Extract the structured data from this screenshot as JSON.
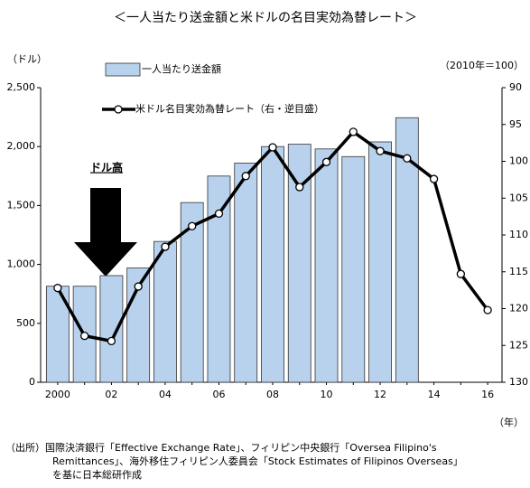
{
  "chart_data": {
    "type": "bar_line",
    "title": "＜一人当たり送金額と米ドルの名目実効為替レート＞",
    "y_label": "（ドル）",
    "y2_label": "（2010年＝100）",
    "x_label": "（年）",
    "annotation": "ドル高",
    "categories": [
      "2000",
      null,
      "02",
      null,
      "04",
      null,
      "06",
      null,
      "08",
      null,
      "10",
      null,
      "12",
      null,
      "14",
      null,
      "16"
    ],
    "series": [
      {
        "name": "一人当たり送金額",
        "color": "#b8d2ee",
        "type": "bar",
        "values": [
          815,
          815,
          905,
          970,
          1195,
          1525,
          1750,
          1860,
          2000,
          2020,
          1980,
          1915,
          2040,
          2245,
          null,
          null,
          null
        ]
      },
      {
        "name": "米ドル名目実効為替レート（右・逆目盛）",
        "color": "#000000",
        "type": "line",
        "axis": "y2",
        "values": [
          117.2,
          123.7,
          124.4,
          117.0,
          111.6,
          108.8,
          107.1,
          102.0,
          98.1,
          103.5,
          100.1,
          96.0,
          98.6,
          99.6,
          102.4,
          115.3,
          120.2
        ]
      }
    ],
    "ylim": [
      0,
      2500
    ],
    "yticks": [
      0,
      500,
      {
        "value": 1000,
        "label": "1,000"
      },
      {
        "value": 1500,
        "label": "1,500"
      },
      {
        "value": 2000,
        "label": "2,000"
      },
      {
        "value": 2500,
        "label": "2,500"
      }
    ],
    "y2lim": [
      90,
      130
    ],
    "y2ticks": [
      90,
      95,
      100,
      105,
      110,
      115,
      120,
      125,
      130
    ],
    "y2_reversed": true,
    "grid": false,
    "source": [
      "（出所）国際決済銀行「Effective Exchange Rate」、フィリピン中央銀行「Oversea Filipino's",
      "Remittances」、海外移住フィリピン人委員会「Stock Estimates of Filipinos Overseas」",
      "を基に日本総研作成"
    ]
  }
}
